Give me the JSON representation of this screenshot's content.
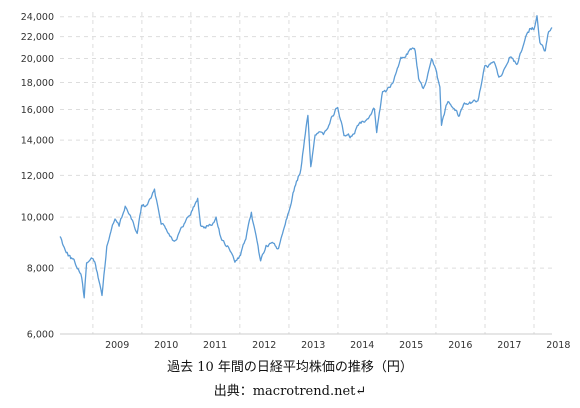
{
  "chart_data": {
    "type": "line",
    "title": "",
    "xlabel": "",
    "ylabel": "",
    "y_scale": "log",
    "ylim": [
      6000,
      24500
    ],
    "grid": true,
    "line_color": "#5b9bd5",
    "y_ticks": [
      6000,
      8000,
      10000,
      12000,
      14000,
      16000,
      18000,
      20000,
      22000,
      24000
    ],
    "y_tick_labels": [
      "6,000",
      "8,000",
      "10,000",
      "12,000",
      "14,000",
      "16,000",
      "18,000",
      "20,000",
      "22,000",
      "24,000"
    ],
    "x_ticks": [
      "2009",
      "2010",
      "2011",
      "2012",
      "2013",
      "2014",
      "2015",
      "2016",
      "2017",
      "2018"
    ],
    "x_range": [
      "2008-05-01",
      "2018-05-15"
    ],
    "series": [
      {
        "x": [
          "2008-05-01",
          "2008-06-01",
          "2008-07-01",
          "2008-08-01",
          "2008-09-01",
          "2008-10-10",
          "2008-10-28",
          "2008-11-15",
          "2008-12-15",
          "2009-01-15",
          "2009-02-15",
          "2009-03-10",
          "2009-04-15",
          "2009-05-15",
          "2009-06-15",
          "2009-07-15",
          "2009-08-30",
          "2009-10-01",
          "2009-11-27",
          "2009-12-30",
          "2010-02-05",
          "2010-04-05",
          "2010-05-25",
          "2010-07-15",
          "2010-08-31",
          "2010-10-15",
          "2010-12-30",
          "2011-02-21",
          "2011-03-15",
          "2011-04-15",
          "2011-06-15",
          "2011-07-08",
          "2011-08-19",
          "2011-10-15",
          "2011-11-25",
          "2011-12-30",
          "2012-02-15",
          "2012-03-27",
          "2012-05-15",
          "2012-06-04",
          "2012-07-15",
          "2012-09-14",
          "2012-10-15",
          "2012-11-15",
          "2012-12-30",
          "2013-01-31",
          "2013-03-31",
          "2013-05-22",
          "2013-06-13",
          "2013-07-15",
          "2013-09-15",
          "2013-12-30",
          "2014-02-15",
          "2014-04-15",
          "2014-06-15",
          "2014-08-15",
          "2014-09-30",
          "2014-10-17",
          "2014-11-30",
          "2014-12-30",
          "2015-02-15",
          "2015-04-15",
          "2015-06-24",
          "2015-07-31",
          "2015-08-25",
          "2015-09-29",
          "2015-11-30",
          "2015-12-30",
          "2016-01-31",
          "2016-02-12",
          "2016-03-31",
          "2016-06-24",
          "2016-07-31",
          "2016-09-30",
          "2016-11-09",
          "2016-12-31",
          "2017-03-15",
          "2017-04-14",
          "2017-06-30",
          "2017-08-31",
          "2017-10-31",
          "2017-11-30",
          "2017-12-31",
          "2018-01-23",
          "2018-02-14",
          "2018-03-26",
          "2018-04-20",
          "2018-05-15"
        ],
        "y": [
          9200,
          8800,
          8500,
          8300,
          8100,
          7700,
          7000,
          8200,
          8400,
          8200,
          7600,
          7100,
          8800,
          9400,
          9900,
          9600,
          10500,
          10100,
          9300,
          10500,
          10500,
          11200,
          9800,
          9400,
          9000,
          9400,
          10200,
          10800,
          9600,
          9600,
          9700,
          10000,
          9000,
          8700,
          8200,
          8400,
          9100,
          10100,
          8800,
          8300,
          8800,
          8900,
          8700,
          9400,
          10300,
          11100,
          12300,
          15600,
          12500,
          14300,
          14400,
          16200,
          14300,
          14200,
          15100,
          15500,
          16100,
          14600,
          17400,
          17300,
          18000,
          19900,
          20800,
          20700,
          18300,
          17400,
          19700,
          19000,
          17500,
          15000,
          16700,
          15600,
          16500,
          16500,
          16700,
          19300,
          19500,
          18300,
          20000,
          19600,
          22000,
          22700,
          22800,
          24000,
          21300,
          20700,
          22400,
          22900
        ]
      }
    ]
  },
  "caption": {
    "line1": "過去 10 年間の日経平均株価の推移（円）",
    "line2": "出典：macrotrend.net↵"
  }
}
